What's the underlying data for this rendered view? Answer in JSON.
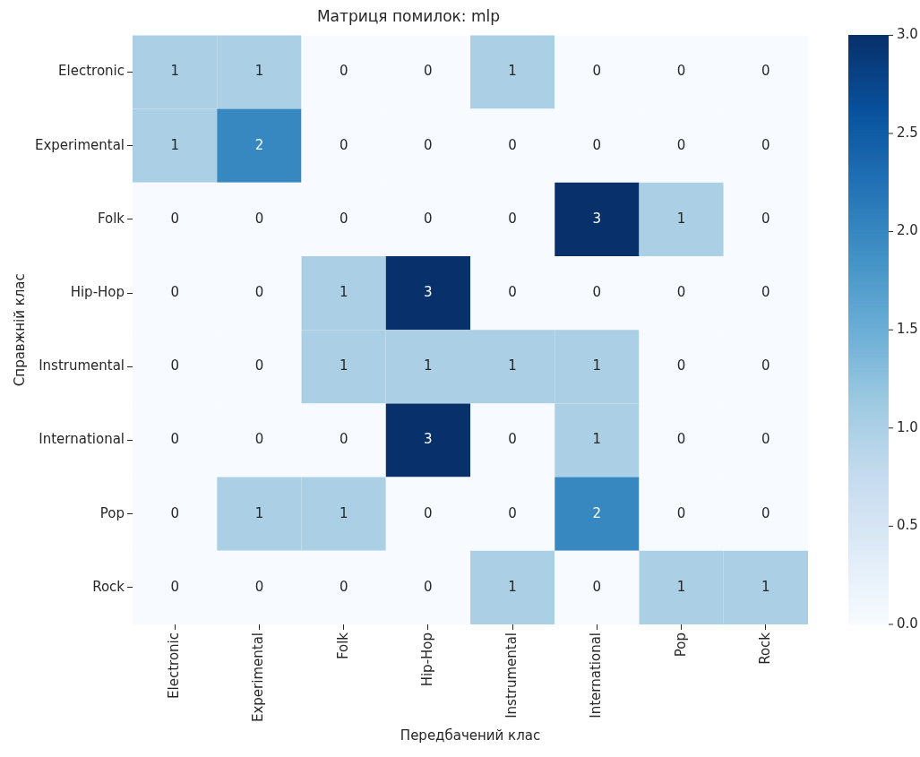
{
  "chart_data": {
    "type": "heatmap",
    "title": "Матриця помилок: mlp",
    "xlabel": "Передбачений клас",
    "ylabel": "Справжній клас",
    "categories": [
      "Electronic",
      "Experimental",
      "Folk",
      "Hip-Hop",
      "Instrumental",
      "International",
      "Pop",
      "Rock"
    ],
    "y_categories": [
      "Electronic",
      "Experimental",
      "Folk",
      "Hip-Hop",
      "Instrumental",
      "International",
      "Pop",
      "Rock"
    ],
    "cells": [
      [
        1,
        1,
        0,
        0,
        1,
        0,
        0,
        0
      ],
      [
        1,
        2,
        0,
        0,
        0,
        0,
        0,
        0
      ],
      [
        0,
        0,
        0,
        0,
        0,
        3,
        1,
        0
      ],
      [
        0,
        0,
        1,
        3,
        0,
        0,
        0,
        0
      ],
      [
        0,
        0,
        1,
        1,
        1,
        1,
        0,
        0
      ],
      [
        0,
        0,
        0,
        3,
        0,
        1,
        0,
        0
      ],
      [
        0,
        1,
        1,
        0,
        0,
        2,
        0,
        0
      ],
      [
        0,
        0,
        0,
        0,
        1,
        0,
        1,
        1
      ]
    ],
    "clim": [
      0,
      3
    ],
    "cticks": [
      {
        "value": 0,
        "label": "0.0"
      },
      {
        "value": 0.5,
        "label": "0.5"
      },
      {
        "value": 1,
        "label": "1.0"
      },
      {
        "value": 1.5,
        "label": "1.5"
      },
      {
        "value": 2,
        "label": "2.0"
      },
      {
        "value": 2.5,
        "label": "2.5"
      },
      {
        "value": 3,
        "label": "3.0"
      }
    ],
    "data_labels": true
  }
}
